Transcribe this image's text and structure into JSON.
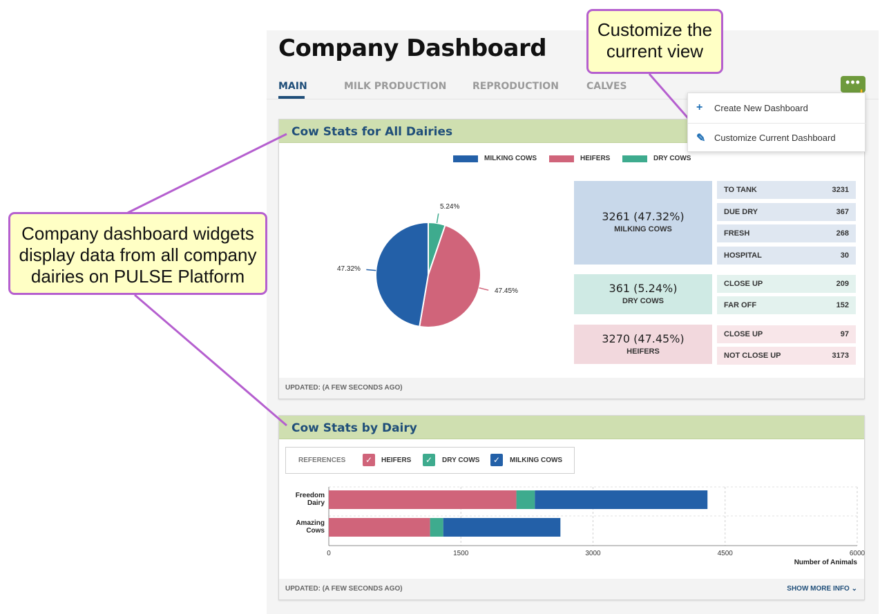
{
  "header": {
    "title": "Company Dashboard",
    "tabs": [
      {
        "label": "MAIN",
        "active": true
      },
      {
        "label": "MILK PRODUCTION",
        "active": false
      },
      {
        "label": "REPRODUCTION",
        "active": false
      },
      {
        "label": "CALVES",
        "active": false
      }
    ],
    "more_button": "•••",
    "more_button_color": "#6e9a3c"
  },
  "menu": {
    "items": [
      {
        "icon": "plus-icon",
        "label": "Create New Dashboard"
      },
      {
        "icon": "pencil-icon",
        "label": "Customize Current Dashboard"
      }
    ]
  },
  "callouts": {
    "top_right": [
      "Customize the",
      "current view"
    ],
    "left": [
      "Company dashboard widgets",
      "display data from all company",
      "dairies on PULSE Platform"
    ]
  },
  "card1": {
    "title": "Cow Stats for All Dairies",
    "legend": [
      "MILKING COWS",
      "HEIFERS",
      "DRY COWS"
    ],
    "pie_labels": [
      "47.32%",
      "47.45%",
      "5.24%"
    ],
    "groups": [
      {
        "value": "3261 (47.32%)",
        "label": "MILKING COWS",
        "bg": "#c8d8ea",
        "row_bg": "#dfe7f1",
        "rows": [
          {
            "k": "TO TANK",
            "n": "3231"
          },
          {
            "k": "DUE DRY",
            "n": "367"
          },
          {
            "k": "FRESH",
            "n": "268"
          },
          {
            "k": "HOSPITAL",
            "n": "30"
          }
        ]
      },
      {
        "value": "361 (5.24%)",
        "label": "DRY COWS",
        "bg": "#cfeae4",
        "row_bg": "#e3f2ee",
        "rows": [
          {
            "k": "CLOSE UP",
            "n": "209"
          },
          {
            "k": "FAR OFF",
            "n": "152"
          }
        ]
      },
      {
        "value": "3270 (47.45%)",
        "label": "HEIFERS",
        "bg": "#f2d8dd",
        "row_bg": "#f8e6e9",
        "rows": [
          {
            "k": "CLOSE UP",
            "n": "97"
          },
          {
            "k": "NOT CLOSE UP",
            "n": "3173"
          }
        ]
      }
    ],
    "updated": "UPDATED: (A FEW SECONDS AGO)"
  },
  "card2": {
    "title": "Cow Stats by Dairy",
    "references_label": "REFERENCES",
    "checks": [
      {
        "label": "HEIFERS",
        "color": "#d0647a"
      },
      {
        "label": "DRY COWS",
        "color": "#3eab8e"
      },
      {
        "label": "MILKING COWS",
        "color": "#2360a8"
      }
    ],
    "check_glyph": "✓",
    "updated": "UPDATED: (A FEW SECONDS AGO)",
    "show_more": "SHOW MORE INFO ⌄"
  },
  "colors": {
    "milking": "#2360a8",
    "heifers": "#d0647a",
    "dry": "#3eab8e"
  },
  "chart_data": [
    {
      "type": "pie",
      "title": "",
      "series": [
        {
          "name": "MILKING COWS",
          "value": 47.32,
          "color": "#2360a8"
        },
        {
          "name": "HEIFERS",
          "value": 47.45,
          "color": "#d0647a"
        },
        {
          "name": "DRY COWS",
          "value": 5.24,
          "color": "#3eab8e"
        }
      ]
    },
    {
      "type": "bar",
      "orientation": "horizontal",
      "stacked": true,
      "categories": [
        "Freedom Dairy",
        "Amazing Cows"
      ],
      "category_lines": [
        [
          "Freedom",
          "Dairy"
        ],
        [
          "Amazing",
          "Cows"
        ]
      ],
      "series": [
        {
          "name": "HEIFERS",
          "values": [
            2130,
            1150
          ],
          "color": "#d0647a"
        },
        {
          "name": "DRY COWS",
          "values": [
            210,
            150
          ],
          "color": "#3eab8e"
        },
        {
          "name": "MILKING COWS",
          "values": [
            1960,
            1330
          ],
          "color": "#2360a8"
        }
      ],
      "xlim": [
        0,
        6000
      ],
      "xticks": [
        "0",
        "1500",
        "3000",
        "4500",
        "6000"
      ],
      "xlabel": "Number of Animals",
      "grid": true
    }
  ]
}
